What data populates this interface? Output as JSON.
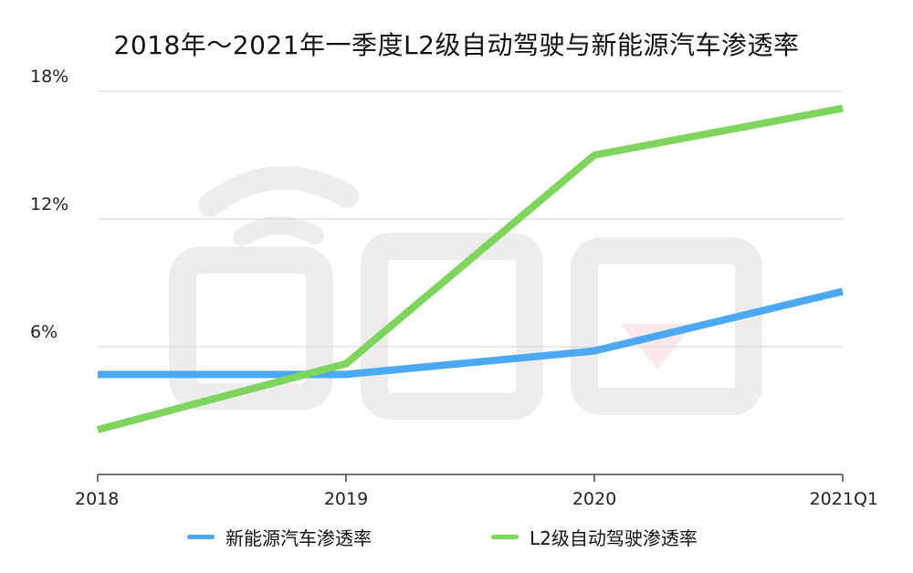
{
  "chart_data": {
    "type": "line",
    "title": "2018年～2021年一季度L2级自动驾驶与新能源汽车渗透率",
    "categories": [
      "2018",
      "2019",
      "2020",
      "2021Q1"
    ],
    "y_ticks": [
      "6%",
      "12%",
      "18%"
    ],
    "ylim": [
      0,
      18
    ],
    "grid": true,
    "legend_position": "bottom",
    "series": [
      {
        "name": "新能源汽车渗透率",
        "values": [
          4.7,
          4.7,
          5.8,
          8.6
        ],
        "color": "#4aa8f5"
      },
      {
        "name": "L2级自动驾驶渗透率",
        "values": [
          2.1,
          5.2,
          15.0,
          17.2
        ],
        "color": "#7ed55b"
      }
    ]
  },
  "watermark": {
    "icon": "chedongxi-logo-watermark"
  }
}
